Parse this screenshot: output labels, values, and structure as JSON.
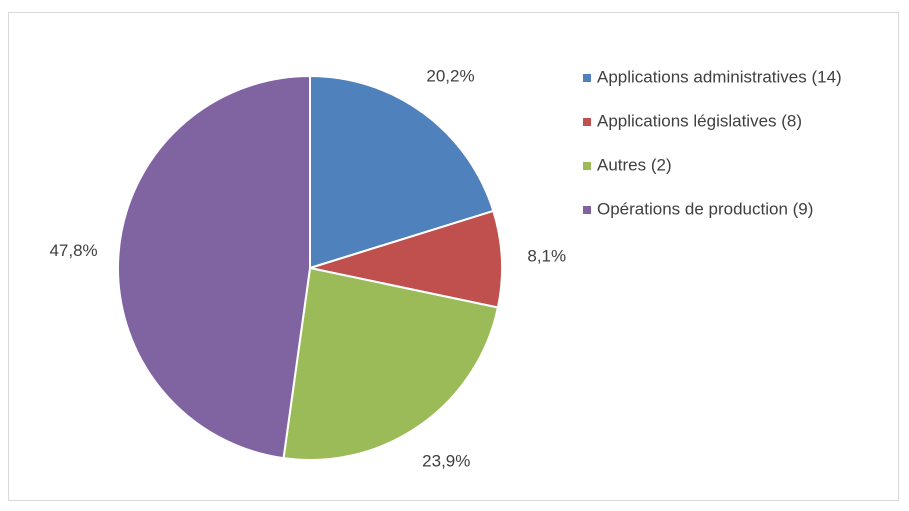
{
  "chart_data": {
    "type": "pie",
    "categories": [
      "Applications administratives (14)",
      "Applications législatives (8)",
      "Autres (2)",
      "Opérations de production (9)"
    ],
    "values": [
      20.2,
      8.1,
      23.9,
      47.8
    ],
    "value_labels": [
      "20,2%",
      "8,1%",
      "23,9%",
      "47,8%"
    ],
    "colors": [
      "#4f81bd",
      "#c0504d",
      "#9bbb59",
      "#8064a2"
    ],
    "legend": "right"
  }
}
